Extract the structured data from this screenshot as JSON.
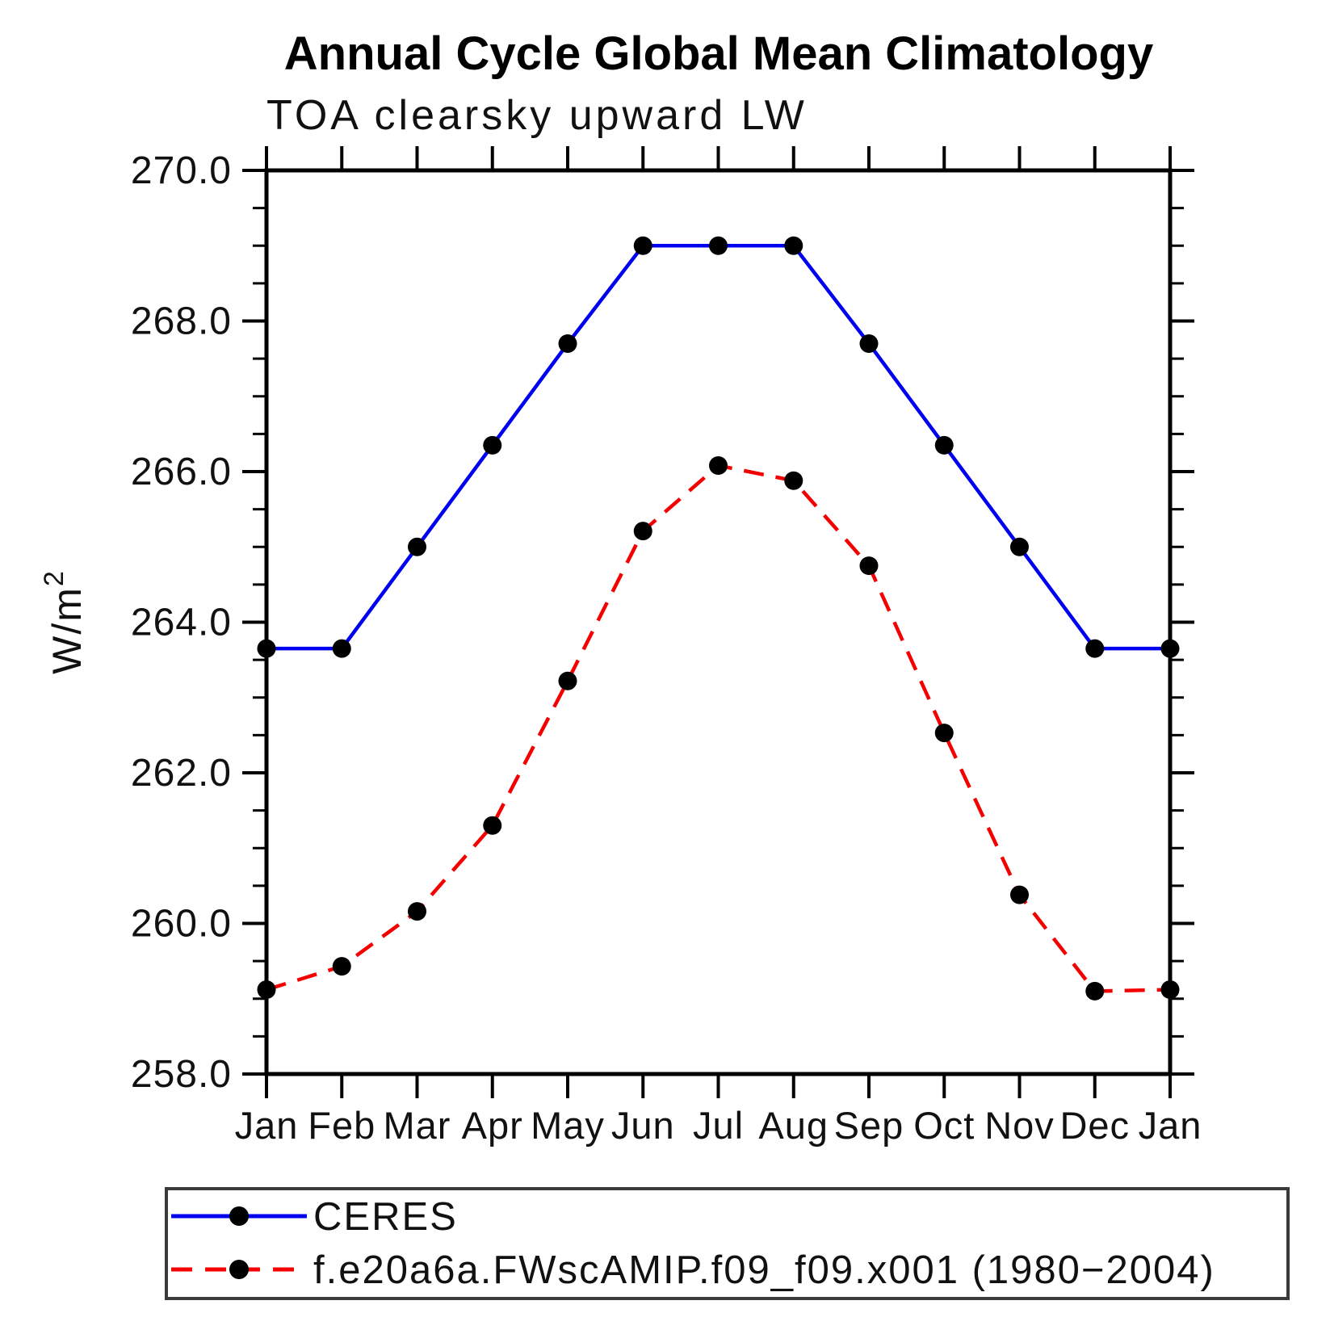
{
  "chart_data": {
    "type": "line",
    "title": "Annual Cycle Global Mean Climatology",
    "subtitle": "TOA clearsky upward LW",
    "ylabel": "W/m²",
    "x_categories": [
      "Jan",
      "Feb",
      "Mar",
      "Apr",
      "May",
      "Jun",
      "Jul",
      "Aug",
      "Sep",
      "Oct",
      "Nov",
      "Dec",
      "Jan"
    ],
    "ylim": [
      258.0,
      270.0
    ],
    "yticks": {
      "values": [
        258,
        260,
        262,
        264,
        266,
        268,
        270
      ],
      "labels": [
        "258.0",
        "260.0",
        "262.0",
        "264.0",
        "266.0",
        "268.0",
        "270.0"
      ],
      "minor_step": 0.5
    },
    "grid": "off",
    "legend_position": "bottom-left-box",
    "axis_color": "#000000",
    "series": [
      {
        "name": "CERES",
        "line_color": "#0000f0",
        "line_style": "solid",
        "marker": "filled-circle",
        "marker_color": "#000000",
        "values": [
          263.65,
          263.65,
          265.0,
          266.35,
          267.7,
          269.0,
          269.0,
          269.0,
          267.7,
          266.35,
          265.0,
          263.65,
          263.65
        ]
      },
      {
        "name": "f.e20a6a.FWscAMIP.f09_f09.x001 (1980−2004)",
        "line_color": "#f50000",
        "line_style": "dashed",
        "marker": "filled-circle",
        "marker_color": "#000000",
        "values": [
          259.12,
          259.43,
          260.16,
          261.3,
          263.22,
          265.21,
          266.08,
          265.88,
          264.75,
          262.53,
          260.38,
          259.1,
          259.12
        ]
      }
    ]
  }
}
